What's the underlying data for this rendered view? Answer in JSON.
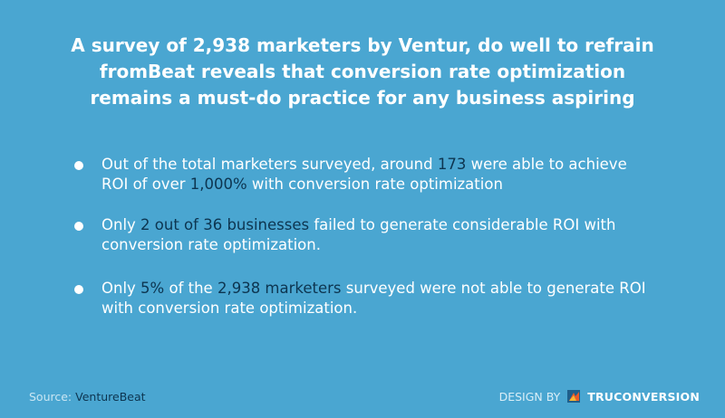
{
  "title": {
    "line1": "A survey of 2,938 marketers by Ventur, do well to refrain",
    "line2": "fromBeat reveals that conversion rate optimization",
    "line3": "remains a must-do practice for any business aspiring"
  },
  "bullets": [
    {
      "pre": "Out of the total marketers surveyed, around ",
      "hl1": "173",
      "mid1": " were able to achieve",
      "mid2": "ROI of over ",
      "hl2": "1,000%",
      "post": " with conversion rate optimization"
    },
    {
      "pre": "Only ",
      "hl1": "2 out of 36 businesses",
      "post": " failed to generate considerable ROI with",
      "line2": "conversion rate optimization."
    },
    {
      "pre": "Only ",
      "hl1": "5%",
      "mid": " of the ",
      "hl2": "2,938 marketers",
      "post": " surveyed were not able to generate ROI",
      "line2": "with conversion rate optimization."
    }
  ],
  "footer": {
    "source_label": "Source:",
    "source_value": "VentureBeat",
    "design_label": "DESIGN BY",
    "brand": "TRUCONVERSION",
    "logo_icon": "truconversion-logo-icon"
  },
  "colors": {
    "background": "#4aa6d1",
    "highlight": "#0d3550",
    "text": "#ffffff"
  }
}
